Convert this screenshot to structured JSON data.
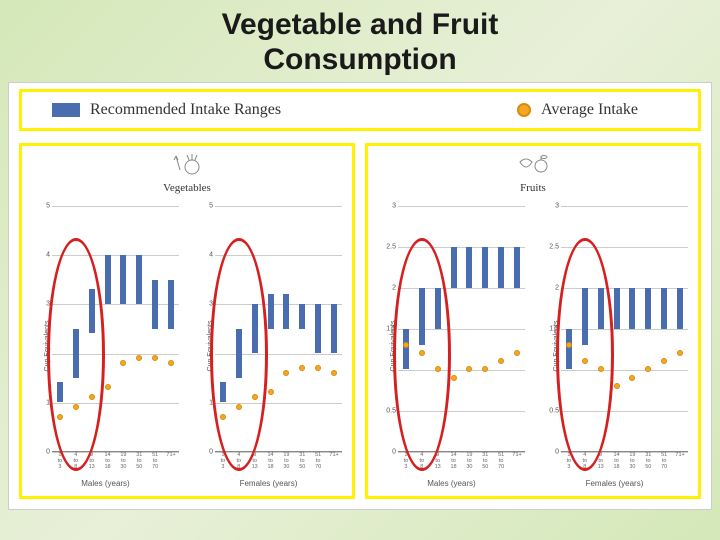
{
  "title_line1": "Vegetable and Fruit",
  "title_line2": "Consumption",
  "legend": {
    "recommended": "Recommended Intake Ranges",
    "average": "Average Intake"
  },
  "colors": {
    "bar": "#4a6db0",
    "dot_fill": "#f5a623",
    "dot_border": "#d88c0a",
    "highlight": "#d62020",
    "panel_border": "#fff200",
    "grid": "#cccccc"
  },
  "age_groups": [
    "1\nto\n3",
    "4\nto\n8",
    "9\nto\n13",
    "14\nto\n18",
    "19\nto\n30",
    "31\nto\n50",
    "51\nto\n70",
    "71+"
  ],
  "panels": [
    {
      "caption": "Vegetables",
      "icon": "veg",
      "ylabel": "Cup Equivalents",
      "ymax": 5,
      "ytick_step": 1,
      "charts": [
        {
          "subtitle": "Males (years)",
          "bars": [
            [
              1,
              1.4
            ],
            [
              1.5,
              2.5
            ],
            [
              2.4,
              3.3
            ],
            [
              3.0,
              4.0
            ],
            [
              3.0,
              4.0
            ],
            [
              3.0,
              4.0
            ],
            [
              2.5,
              3.5
            ],
            [
              2.5,
              3.5
            ]
          ],
          "dots": [
            0.7,
            0.9,
            1.1,
            1.3,
            1.8,
            1.9,
            1.9,
            1.8
          ],
          "highlight_idx": [
            0,
            2
          ]
        },
        {
          "subtitle": "Females (years)",
          "bars": [
            [
              1,
              1.4
            ],
            [
              1.5,
              2.5
            ],
            [
              2.0,
              3.0
            ],
            [
              2.5,
              3.2
            ],
            [
              2.5,
              3.2
            ],
            [
              2.5,
              3.0
            ],
            [
              2.0,
              3.0
            ],
            [
              2.0,
              3.0
            ]
          ],
          "dots": [
            0.7,
            0.9,
            1.1,
            1.2,
            1.6,
            1.7,
            1.7,
            1.6
          ],
          "highlight_idx": [
            0,
            2
          ]
        }
      ]
    },
    {
      "caption": "Fruits",
      "icon": "fruit",
      "ylabel": "Cup Equivalents",
      "ymax": 3,
      "ytick_step": 0.5,
      "charts": [
        {
          "subtitle": "Males (years)",
          "bars": [
            [
              1,
              1.5
            ],
            [
              1.3,
              2.0
            ],
            [
              1.5,
              2.0
            ],
            [
              2.0,
              2.5
            ],
            [
              2.0,
              2.5
            ],
            [
              2.0,
              2.5
            ],
            [
              2.0,
              2.5
            ],
            [
              2.0,
              2.5
            ]
          ],
          "dots": [
            1.3,
            1.2,
            1.0,
            0.9,
            1.0,
            1.0,
            1.1,
            1.2
          ],
          "highlight_idx": [
            0,
            2
          ]
        },
        {
          "subtitle": "Females (years)",
          "bars": [
            [
              1,
              1.5
            ],
            [
              1.3,
              2.0
            ],
            [
              1.5,
              2.0
            ],
            [
              1.5,
              2.0
            ],
            [
              1.5,
              2.0
            ],
            [
              1.5,
              2.0
            ],
            [
              1.5,
              2.0
            ],
            [
              1.5,
              2.0
            ]
          ],
          "dots": [
            1.3,
            1.1,
            1.0,
            0.8,
            0.9,
            1.0,
            1.1,
            1.2
          ],
          "highlight_idx": [
            0,
            2
          ]
        }
      ]
    }
  ]
}
